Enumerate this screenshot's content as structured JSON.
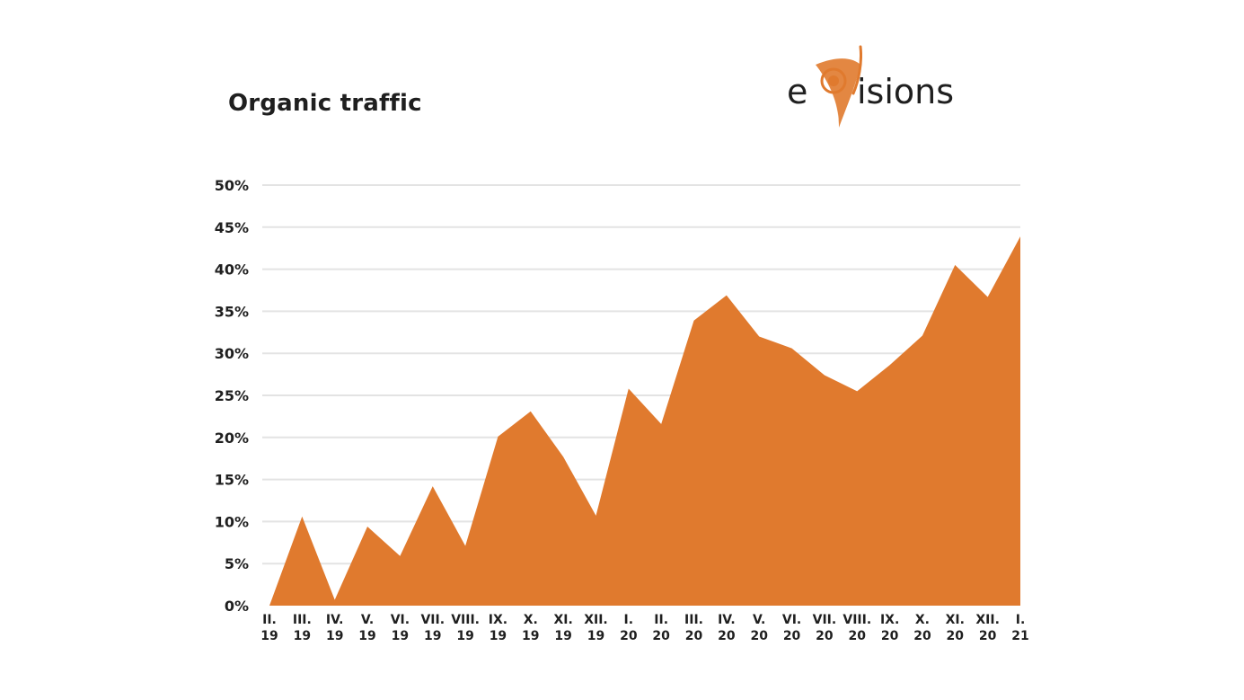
{
  "header": {
    "title": "Organic traffic"
  },
  "logo": {
    "text_e": "e",
    "text_rest": "isions",
    "icon": "evisions-logo-mark",
    "accent_color": "#e07a2e"
  },
  "chart_data": {
    "type": "area",
    "title": "Organic traffic",
    "xlabel": "",
    "ylabel": "",
    "ylim": [
      0,
      50
    ],
    "y_ticks": [
      "0%",
      "5%",
      "10%",
      "15%",
      "20%",
      "25%",
      "30%",
      "35%",
      "40%",
      "45%",
      "50%"
    ],
    "y_tick_values": [
      0,
      5,
      10,
      15,
      20,
      25,
      30,
      35,
      40,
      45,
      50
    ],
    "grid": true,
    "legend": "none",
    "fill_color": "#e07a2e",
    "categories": [
      [
        "II.",
        "19"
      ],
      [
        "III.",
        "19"
      ],
      [
        "IV.",
        "19"
      ],
      [
        "V.",
        "19"
      ],
      [
        "VI.",
        "19"
      ],
      [
        "VII.",
        "19"
      ],
      [
        "VIII.",
        "19"
      ],
      [
        "IX.",
        "19"
      ],
      [
        "X.",
        "19"
      ],
      [
        "XI.",
        "19"
      ],
      [
        "XII.",
        "19"
      ],
      [
        "I.",
        "20"
      ],
      [
        "II.",
        "20"
      ],
      [
        "III.",
        "20"
      ],
      [
        "IV.",
        "20"
      ],
      [
        "V.",
        "20"
      ],
      [
        "VI.",
        "20"
      ],
      [
        "VII.",
        "20"
      ],
      [
        "VIII.",
        "20"
      ],
      [
        "IX.",
        "20"
      ],
      [
        "X.",
        "20"
      ],
      [
        "XI.",
        "20"
      ],
      [
        "XII.",
        "20"
      ],
      [
        "I.",
        "21"
      ]
    ],
    "values": [
      0,
      10.6,
      0.7,
      9.4,
      5.9,
      14.2,
      7.1,
      20.1,
      23.1,
      17.7,
      10.7,
      25.8,
      21.6,
      33.9,
      36.9,
      32,
      30.6,
      27.4,
      25.5,
      28.6,
      32.1,
      40.5,
      36.7,
      43.9
    ]
  }
}
